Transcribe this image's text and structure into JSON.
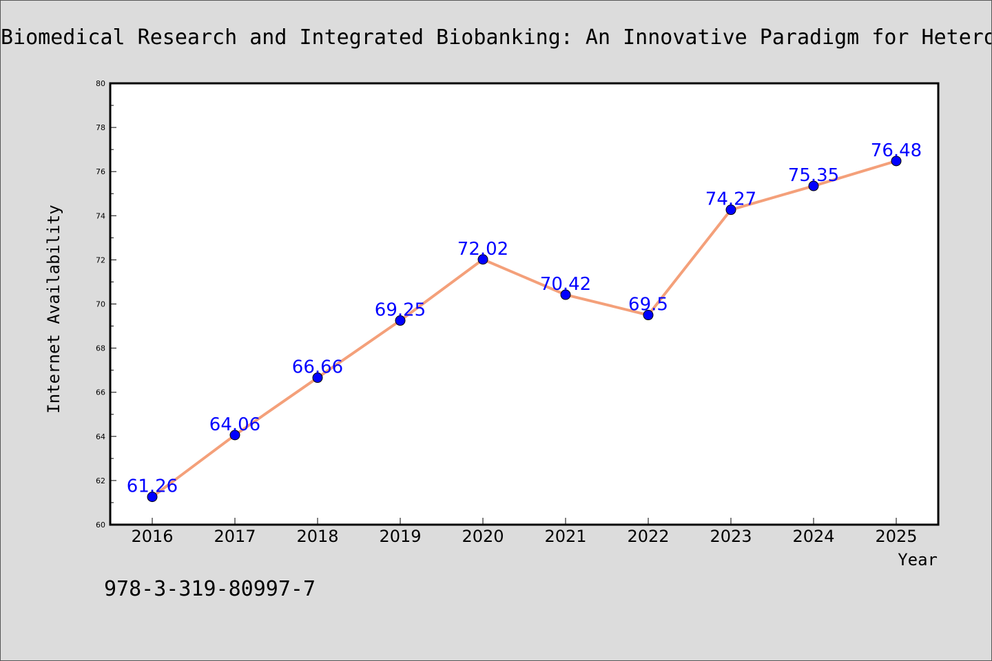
{
  "chart_data": {
    "type": "line",
    "title": "Biomedical Research and Integrated Biobanking: An Innovative Paradigm for Hetero",
    "xlabel": "Year",
    "ylabel": "Internet Availability",
    "categories": [
      "2016",
      "2017",
      "2018",
      "2019",
      "2020",
      "2021",
      "2022",
      "2023",
      "2024",
      "2025"
    ],
    "series": [
      {
        "values": [
          61.26,
          64.06,
          66.66,
          69.25,
          72.02,
          70.42,
          69.5,
          74.27,
          75.35,
          76.48
        ],
        "labels": [
          "61.26",
          "64.06",
          "66.66",
          "69.25",
          "72.02",
          "70.42",
          "69.5",
          "74.27",
          "75.35",
          "76.48"
        ],
        "line_color": "#f4a07a",
        "marker_color": "#0000ff"
      }
    ],
    "ylim": [
      60,
      80
    ],
    "yticks": [
      "60",
      "62",
      "64",
      "66",
      "68",
      "70",
      "72",
      "74",
      "76",
      "78",
      "80"
    ],
    "grid": false,
    "legend": "none"
  },
  "annotation": "978-3-319-80997-7",
  "colors": {
    "background": "#dcdcdc",
    "plot_background": "#ffffff",
    "line": "#f4a07a",
    "marker": "#0000ff",
    "data_label": "#0000ff"
  }
}
